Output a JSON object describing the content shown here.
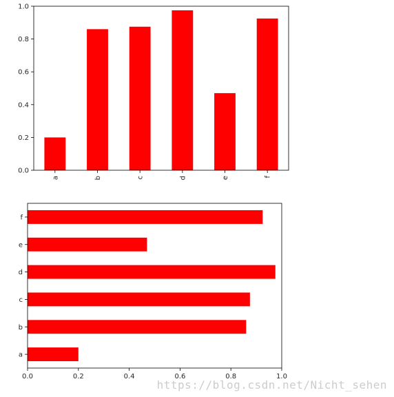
{
  "chart_data": [
    {
      "type": "bar",
      "orientation": "vertical",
      "categories": [
        "a",
        "b",
        "c",
        "d",
        "e",
        "f"
      ],
      "values": [
        0.2,
        0.86,
        0.875,
        0.975,
        0.47,
        0.925
      ],
      "ylim": [
        0,
        1.0
      ],
      "yticks": [
        "0.0",
        "0.2",
        "0.4",
        "0.6",
        "0.8",
        "1.0"
      ],
      "xtick_rotation": "vertical",
      "bar_color": "#ff0000",
      "grid": false,
      "title": "",
      "xlabel": "",
      "ylabel": ""
    },
    {
      "type": "bar",
      "orientation": "horizontal",
      "categories": [
        "a",
        "b",
        "c",
        "d",
        "e",
        "f"
      ],
      "values": [
        0.2,
        0.86,
        0.875,
        0.975,
        0.47,
        0.925
      ],
      "xlim": [
        0,
        1.0
      ],
      "xticks": [
        "0.0",
        "0.2",
        "0.4",
        "0.6",
        "0.8",
        "1.0"
      ],
      "bar_color": "#ff0000",
      "grid": false,
      "title": "",
      "xlabel": "",
      "ylabel": ""
    }
  ],
  "watermark": "https://blog.csdn.net/Nicht_sehen"
}
